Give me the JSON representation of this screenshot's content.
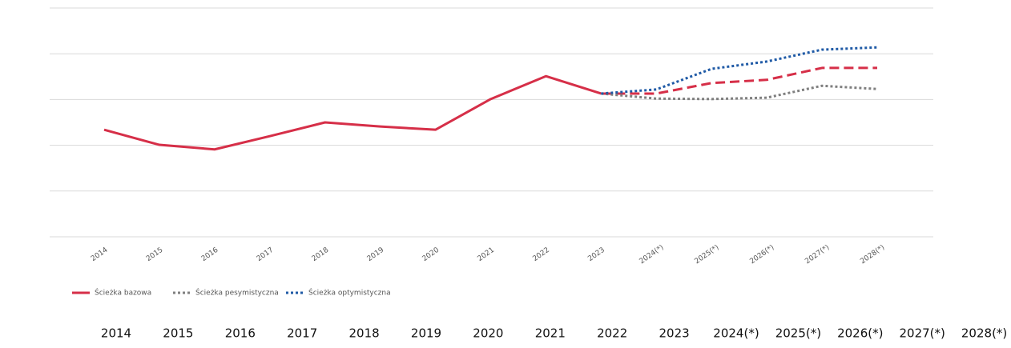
{
  "chart_data": {
    "type": "line",
    "categories": [
      "2014",
      "2015",
      "2016",
      "2017",
      "2018",
      "2019",
      "2020",
      "2021",
      "2022",
      "2023",
      "2024(*)",
      "2025(*)",
      "2026(*)",
      "2027(*)",
      "2028(*)"
    ],
    "series": [
      {
        "name": "Ścieżka bazowa",
        "color": "#d62f48",
        "style": "solid",
        "values": [
          2.34,
          2.01,
          1.91,
          2.2,
          2.5,
          2.41,
          2.34,
          3.01,
          3.51,
          3.13,
          3.13,
          3.36,
          3.43,
          3.69,
          3.69
        ]
      },
      {
        "name": "Ścieżka pesymistyczna",
        "color": "#7f7f7f",
        "style": "dotted",
        "values": [
          null,
          null,
          null,
          null,
          null,
          null,
          null,
          null,
          null,
          3.13,
          3.02,
          3.01,
          3.04,
          3.3,
          3.23
        ]
      },
      {
        "name": "Ścieżka optymistyczna",
        "color": "#1f5aa6",
        "style": "dotted",
        "values": [
          null,
          null,
          null,
          null,
          null,
          null,
          null,
          null,
          null,
          3.13,
          3.22,
          3.67,
          3.83,
          4.09,
          4.14
        ]
      }
    ],
    "ylim": [
      0,
      5
    ],
    "yticks": [
      0,
      1,
      2,
      3,
      4,
      5
    ],
    "grid": true
  }
}
